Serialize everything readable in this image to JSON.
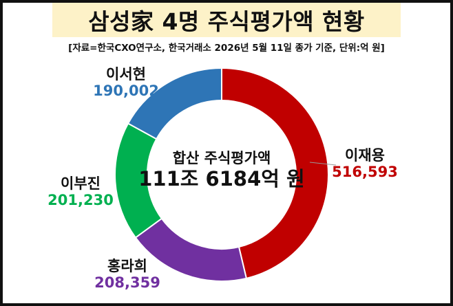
{
  "title": "삼성家 4명 주식평가액 현황",
  "subtitle": "[자료=한국CXO연구소, 한국거래소 2026년 5월 11일 종가 기준, 단위:억 원]",
  "center": {
    "label": "합산 주식평가액",
    "value": "111조 6184억 원"
  },
  "chart_data": {
    "type": "pie",
    "style": "donut",
    "unit": "억 원",
    "categories": [
      "이재용",
      "홍라희",
      "이부진",
      "이서현"
    ],
    "values": [
      516593,
      208359,
      201230,
      190002
    ],
    "value_labels": [
      "516,593",
      "208,359",
      "201,230",
      "190,002"
    ],
    "colors": [
      "#c00000",
      "#7030a0",
      "#00b050",
      "#2e75b6"
    ]
  }
}
